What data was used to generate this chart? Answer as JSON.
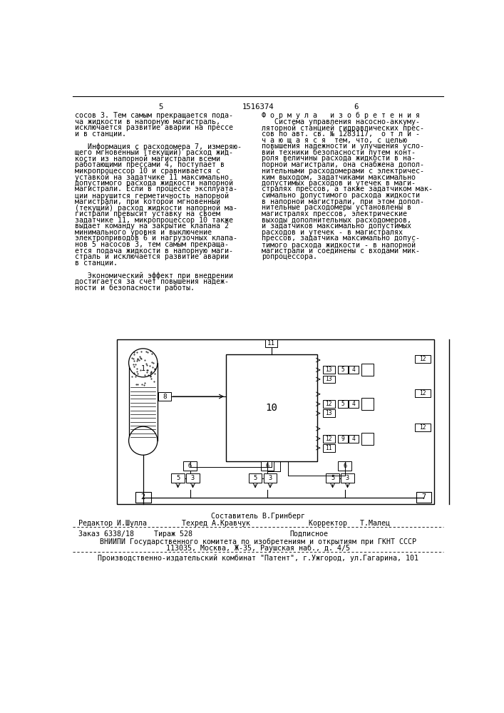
{
  "page_number_left": "5",
  "patent_number": "1516374",
  "page_number_right": "6",
  "left_column_text": [
    "сосов 3. Тем самым прекращается пода-",
    "ча жидкости в напорную магистраль,",
    "исключается развитие аварии на прессе",
    "и в станции.",
    "",
    "   Информация с расходомера 7, измеряю-",
    "щего мгновенный (текущий) расход жид-",
    "кости из напорной магистрали всеми",
    "работающими прессами 4, поступает в",
    "микропроцессор 10 и сравнивается с",
    "уставкой на задатчике 11 максимально",
    "допустимого расхода жидкости напорной",
    "магистрали. Если в процессе эксплуата-",
    "ции нарушится герметичность напорной",
    "магистрали, при которой мгновенный",
    "(текущий) расход жидкости напорной ма-",
    "гистрали превысит уставку на своем",
    "задатчике 11, микропроцессор 10 также",
    "выдает команду на закрытие клапана 2",
    "минимального уровня и выключение",
    "электроприводов 6 и нагрузочных клапа-",
    "нов 5 насосов 3, тем самым прекраща-",
    "ется подача жидкости в напорную маги-",
    "страль и исключается развитие аварии",
    "в станции.",
    "",
    "   Экономический эффект при внедрении",
    "достигается за счет повышения надеж-",
    "ности и безопасности работы."
  ],
  "right_column_header": "Ф о р м у л а   и з о б р е т е н и я",
  "right_column_text": [
    "   Система управления насосно-аккуму-",
    "ляторной станцией гидравлических прес-",
    "сов по авт. св. № 1283117,  о т л и -",
    "ч а ю щ а я с я  тем, что, с целью",
    "повышения надежности и улучшения усло-",
    "вий техники безопасности путем конт-",
    "роля величины расхода жидкости в на-",
    "порной магистрали, она снабжена допол-",
    "нительными расходомерами с электричес-",
    "ким выходом, задатчиками максимально",
    "допустимых расходов и утечек в маги-",
    "стралях прессов, а также задатчиком мак-",
    "симально допустимого расхода жидкости",
    "в напорной магистрали, при этом допол-",
    "нительные расходомеры установлены в",
    "магистралях прессов, электрические",
    "выходы дополнительных расходомеров,",
    "и задатчиков максимально допустимых",
    "расходов и утечек - в магистралях",
    "прессов, задатчика максимально допус-",
    "тимого расхода жидкости - в напорной",
    "магистрали и соединены с входами мик-",
    "ропроцессора."
  ],
  "bg_color": "#ffffff",
  "text_color": "#000000",
  "font_size": 7.2,
  "vniip_line1": "ВНИИПИ Государственного комитета по изобретениям и открытиям при ГКНТ СССР",
  "vniip_line2": "113035, Москва, Ж-35, Раушская наб., д. 4/5",
  "publisher_line": "Производственно-издательский комбинат \"Патент\", г.Ужгород, ул.Гагарина, 101"
}
